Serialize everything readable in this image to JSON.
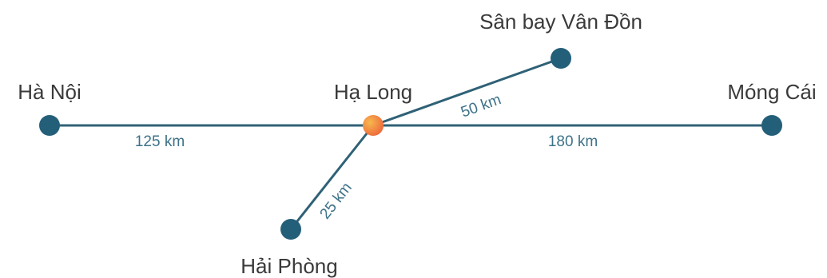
{
  "diagram": {
    "colors": {
      "node": "#245f79",
      "line": "#2f6176",
      "distance_text": "#3e7289",
      "label_text": "#3a3a3a",
      "hub_gradient": [
        "#f7b84e",
        "#ee6a3c"
      ]
    },
    "hub": {
      "name": "Hạ Long"
    },
    "destinations": [
      {
        "id": "ha-noi",
        "name": "Hà Nội",
        "distance": "125 km"
      },
      {
        "id": "san-bay-van-don",
        "name": "Sân bay Vân Đồn",
        "distance": "50 km"
      },
      {
        "id": "mong-cai",
        "name": "Móng Cái",
        "distance": "180 km"
      },
      {
        "id": "hai-phong",
        "name": "Hải Phòng",
        "distance": "25 km"
      }
    ]
  }
}
